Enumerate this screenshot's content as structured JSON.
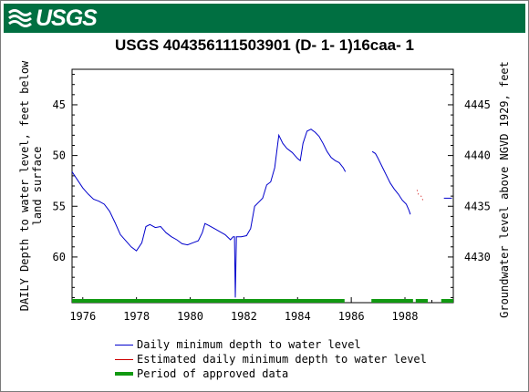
{
  "header": {
    "agency_logo_text": "USGS"
  },
  "colors": {
    "banner": "#006f41",
    "daily": "#0000cc",
    "estimated": "#cc0000",
    "approved": "#119911"
  },
  "chart_data": {
    "type": "line",
    "title": "USGS 404356111503901  (D- 1- 1)16caa- 1",
    "ylabel": "DAILY Depth to water level, feet below land surface",
    "ylabel_lines": [
      "DAILY Depth to water level, feet below",
      "land surface"
    ],
    "y2label": "Groundwater level above NGVD 1929, feet",
    "ylim": [
      64.5,
      41.5
    ],
    "y2lim": [
      4425.5,
      4448.5
    ],
    "y_ticks": [
      "45",
      "50",
      "55",
      "60"
    ],
    "y2_ticks": [
      "4445",
      "4440",
      "4435",
      "4430"
    ],
    "x_ticks": [
      "1976",
      "1978",
      "1980",
      "1982",
      "1984",
      "1986",
      "1988"
    ],
    "xlim": [
      1975.6,
      1989.8
    ],
    "series": [
      {
        "name": "Daily minimum depth to water level",
        "segments": [
          [
            [
              1975.6,
              51.6
            ],
            [
              1975.8,
              52.4
            ],
            [
              1976.0,
              53.2
            ],
            [
              1976.2,
              53.8
            ],
            [
              1976.4,
              54.3
            ],
            [
              1976.6,
              54.5
            ],
            [
              1976.8,
              54.8
            ],
            [
              1977.0,
              55.5
            ],
            [
              1977.2,
              56.6
            ],
            [
              1977.4,
              57.8
            ],
            [
              1977.6,
              58.4
            ],
            [
              1977.8,
              59.0
            ],
            [
              1978.0,
              59.4
            ],
            [
              1978.2,
              58.6
            ],
            [
              1978.35,
              57.0
            ],
            [
              1978.5,
              56.8
            ],
            [
              1978.7,
              57.1
            ],
            [
              1978.9,
              57.0
            ],
            [
              1979.1,
              57.6
            ],
            [
              1979.3,
              58.0
            ],
            [
              1979.5,
              58.3
            ],
            [
              1979.7,
              58.7
            ],
            [
              1979.9,
              58.8
            ],
            [
              1980.1,
              58.6
            ],
            [
              1980.3,
              58.4
            ],
            [
              1980.45,
              57.6
            ],
            [
              1980.55,
              56.7
            ],
            [
              1980.7,
              56.9
            ],
            [
              1980.9,
              57.2
            ],
            [
              1981.1,
              57.5
            ],
            [
              1981.3,
              57.8
            ],
            [
              1981.5,
              58.3
            ],
            [
              1981.6,
              58.0
            ],
            [
              1981.65,
              58.0
            ],
            [
              1981.68,
              64.0
            ],
            [
              1981.72,
              58.0
            ],
            [
              1981.9,
              58.0
            ],
            [
              1982.1,
              57.9
            ],
            [
              1982.25,
              57.2
            ],
            [
              1982.4,
              55.0
            ],
            [
              1982.55,
              54.6
            ],
            [
              1982.7,
              54.2
            ],
            [
              1982.85,
              52.9
            ],
            [
              1983.0,
              52.6
            ],
            [
              1983.15,
              51.2
            ],
            [
              1983.3,
              48.0
            ],
            [
              1983.45,
              48.8
            ],
            [
              1983.6,
              49.3
            ],
            [
              1983.8,
              49.7
            ],
            [
              1984.0,
              50.3
            ],
            [
              1984.1,
              50.5
            ],
            [
              1984.2,
              48.8
            ],
            [
              1984.35,
              47.6
            ],
            [
              1984.5,
              47.4
            ],
            [
              1984.65,
              47.7
            ],
            [
              1984.8,
              48.1
            ],
            [
              1984.95,
              48.8
            ],
            [
              1985.1,
              49.6
            ],
            [
              1985.25,
              50.2
            ],
            [
              1985.4,
              50.5
            ],
            [
              1985.55,
              50.7
            ],
            [
              1985.7,
              51.2
            ],
            [
              1985.78,
              51.6
            ]
          ],
          [
            [
              1986.78,
              49.6
            ],
            [
              1986.9,
              49.8
            ],
            [
              1987.0,
              50.3
            ],
            [
              1987.15,
              51.1
            ],
            [
              1987.3,
              51.9
            ],
            [
              1987.45,
              52.7
            ],
            [
              1987.6,
              53.3
            ],
            [
              1987.75,
              53.8
            ],
            [
              1987.9,
              54.4
            ],
            [
              1988.05,
              54.8
            ],
            [
              1988.15,
              55.4
            ],
            [
              1988.2,
              55.8
            ]
          ],
          [
            [
              1989.45,
              54.2
            ],
            [
              1989.75,
              54.2
            ]
          ]
        ]
      },
      {
        "name": "Estimated daily minimum depth to water level",
        "segments": [
          [
            [
              1988.45,
              53.4
            ],
            [
              1988.5,
              53.8
            ],
            [
              1988.6,
              54.0
            ],
            [
              1988.7,
              54.6
            ]
          ]
        ]
      },
      {
        "name": "Period of approved data",
        "periods": [
          [
            1975.6,
            1985.75
          ],
          [
            1986.75,
            1988.3
          ],
          [
            1988.4,
            1988.85
          ],
          [
            1989.35,
            1989.8
          ]
        ]
      }
    ],
    "legend_position": "bottom"
  }
}
